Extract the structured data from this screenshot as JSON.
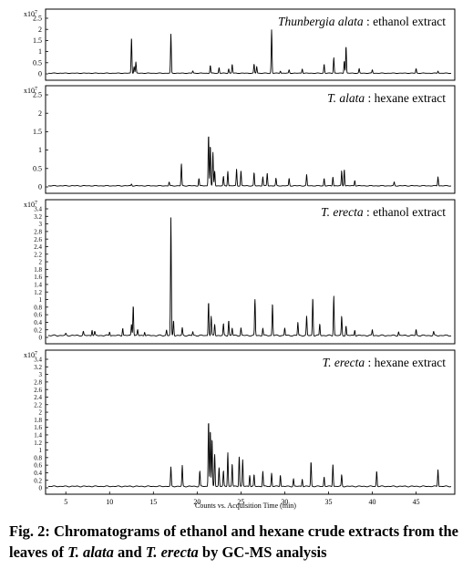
{
  "chart_data": [
    {
      "type": "line",
      "title_italic": "Thunbergia alata",
      "title_rest": " : ethanol extract",
      "scale_label": "x10",
      "scale_exp": "7",
      "ylim": [
        0,
        2.5
      ],
      "ytick_labels": [
        "0",
        "0.5",
        "1",
        "1.5",
        "2",
        "2.5"
      ],
      "baseline": 0.03,
      "peaks": [
        {
          "x": 12.5,
          "y": 1.6
        },
        {
          "x": 12.8,
          "y": 0.3
        },
        {
          "x": 13.0,
          "y": 0.5
        },
        {
          "x": 17.0,
          "y": 1.75
        },
        {
          "x": 19.5,
          "y": 0.1
        },
        {
          "x": 21.5,
          "y": 0.35
        },
        {
          "x": 22.5,
          "y": 0.25
        },
        {
          "x": 23.6,
          "y": 0.2
        },
        {
          "x": 24.0,
          "y": 0.4
        },
        {
          "x": 26.5,
          "y": 0.4
        },
        {
          "x": 26.8,
          "y": 0.3
        },
        {
          "x": 28.5,
          "y": 1.95
        },
        {
          "x": 29.5,
          "y": 0.1
        },
        {
          "x": 30.5,
          "y": 0.15
        },
        {
          "x": 32.0,
          "y": 0.2
        },
        {
          "x": 34.5,
          "y": 0.4
        },
        {
          "x": 35.6,
          "y": 0.7
        },
        {
          "x": 36.8,
          "y": 0.55
        },
        {
          "x": 37.0,
          "y": 1.2
        },
        {
          "x": 38.5,
          "y": 0.2
        },
        {
          "x": 40.0,
          "y": 0.15
        },
        {
          "x": 45.0,
          "y": 0.2
        },
        {
          "x": 47.5,
          "y": 0.1
        }
      ]
    },
    {
      "type": "line",
      "title_italic": "T. alata",
      "title_rest": " : hexane extract",
      "scale_label": "x10",
      "scale_exp": "7",
      "ylim": [
        0,
        2.5
      ],
      "ytick_labels": [
        "0",
        "0.5",
        "1",
        "1.5",
        "2",
        "2.5"
      ],
      "baseline": 0.03,
      "peaks": [
        {
          "x": 12.5,
          "y": 0.05
        },
        {
          "x": 16.8,
          "y": 0.1
        },
        {
          "x": 18.2,
          "y": 0.6
        },
        {
          "x": 20.2,
          "y": 0.2
        },
        {
          "x": 21.3,
          "y": 1.4
        },
        {
          "x": 21.5,
          "y": 1.1
        },
        {
          "x": 21.8,
          "y": 0.9
        },
        {
          "x": 22.0,
          "y": 0.4
        },
        {
          "x": 23.0,
          "y": 0.25
        },
        {
          "x": 23.5,
          "y": 0.4
        },
        {
          "x": 24.5,
          "y": 0.45
        },
        {
          "x": 25.0,
          "y": 0.4
        },
        {
          "x": 26.5,
          "y": 0.35
        },
        {
          "x": 27.5,
          "y": 0.25
        },
        {
          "x": 28.0,
          "y": 0.35
        },
        {
          "x": 29.0,
          "y": 0.2
        },
        {
          "x": 30.5,
          "y": 0.2
        },
        {
          "x": 32.5,
          "y": 0.3
        },
        {
          "x": 34.5,
          "y": 0.2
        },
        {
          "x": 35.5,
          "y": 0.25
        },
        {
          "x": 36.5,
          "y": 0.4
        },
        {
          "x": 36.8,
          "y": 0.45
        },
        {
          "x": 38.0,
          "y": 0.15
        },
        {
          "x": 42.5,
          "y": 0.1
        },
        {
          "x": 47.5,
          "y": 0.25
        }
      ]
    },
    {
      "type": "line",
      "title_italic": "T. erecta",
      "title_rest": " : ethanol extract",
      "scale_label": "x10",
      "scale_exp": "7",
      "ylim": [
        0,
        3.4
      ],
      "ytick_labels": [
        "0",
        "0.2",
        "0.4",
        "0.6",
        "0.8",
        "1",
        "1.2",
        "1.4",
        "1.6",
        "1.8",
        "2",
        "2.2",
        "2.4",
        "2.6",
        "2.8",
        "3",
        "3.2",
        "3.4"
      ],
      "baseline": 0.05,
      "peaks": [
        {
          "x": 5.0,
          "y": 0.05
        },
        {
          "x": 7.0,
          "y": 0.1
        },
        {
          "x": 8.0,
          "y": 0.15
        },
        {
          "x": 8.3,
          "y": 0.1
        },
        {
          "x": 10.0,
          "y": 0.1
        },
        {
          "x": 11.5,
          "y": 0.2
        },
        {
          "x": 12.5,
          "y": 0.3
        },
        {
          "x": 12.7,
          "y": 0.8
        },
        {
          "x": 13.2,
          "y": 0.15
        },
        {
          "x": 14.0,
          "y": 0.1
        },
        {
          "x": 16.5,
          "y": 0.15
        },
        {
          "x": 17.0,
          "y": 3.1
        },
        {
          "x": 17.3,
          "y": 0.4
        },
        {
          "x": 18.3,
          "y": 0.2
        },
        {
          "x": 19.5,
          "y": 0.1
        },
        {
          "x": 21.3,
          "y": 0.9
        },
        {
          "x": 21.6,
          "y": 0.5
        },
        {
          "x": 22.0,
          "y": 0.3
        },
        {
          "x": 23.0,
          "y": 0.3
        },
        {
          "x": 23.6,
          "y": 0.4
        },
        {
          "x": 24.0,
          "y": 0.2
        },
        {
          "x": 25.0,
          "y": 0.2
        },
        {
          "x": 26.6,
          "y": 0.95
        },
        {
          "x": 27.5,
          "y": 0.2
        },
        {
          "x": 28.6,
          "y": 0.85
        },
        {
          "x": 30.0,
          "y": 0.2
        },
        {
          "x": 31.5,
          "y": 0.35
        },
        {
          "x": 32.5,
          "y": 0.5
        },
        {
          "x": 33.2,
          "y": 1.0
        },
        {
          "x": 34.0,
          "y": 0.3
        },
        {
          "x": 35.6,
          "y": 1.05
        },
        {
          "x": 36.5,
          "y": 0.5
        },
        {
          "x": 37.0,
          "y": 0.25
        },
        {
          "x": 38.0,
          "y": 0.15
        },
        {
          "x": 40.0,
          "y": 0.15
        },
        {
          "x": 43.0,
          "y": 0.1
        },
        {
          "x": 45.0,
          "y": 0.15
        },
        {
          "x": 47.0,
          "y": 0.1
        }
      ]
    },
    {
      "type": "line",
      "title_italic": "T. erecta",
      "title_rest": " : hexane extract",
      "scale_label": "x10",
      "scale_exp": "7",
      "ylim": [
        0,
        3.4
      ],
      "ytick_labels": [
        "0",
        "0.2",
        "0.4",
        "0.6",
        "0.8",
        "1",
        "1.2",
        "1.4",
        "1.6",
        "1.8",
        "2",
        "2.2",
        "2.4",
        "2.6",
        "2.8",
        "3",
        "3.2",
        "3.4"
      ],
      "baseline": 0.04,
      "xlabel": "Counts vs. Acquisition Time (min)",
      "xlim": [
        3,
        49
      ],
      "xtick_labels": [
        "5",
        "10",
        "15",
        "20",
        "25",
        "30",
        "35",
        "40",
        "45"
      ],
      "xticks": [
        5,
        10,
        15,
        20,
        25,
        30,
        35,
        40,
        45
      ],
      "peaks": [
        {
          "x": 17.0,
          "y": 0.5
        },
        {
          "x": 18.3,
          "y": 0.55
        },
        {
          "x": 20.3,
          "y": 0.4
        },
        {
          "x": 21.3,
          "y": 1.75
        },
        {
          "x": 21.5,
          "y": 1.5
        },
        {
          "x": 21.7,
          "y": 1.25
        },
        {
          "x": 22.0,
          "y": 0.85
        },
        {
          "x": 22.5,
          "y": 0.5
        },
        {
          "x": 23.0,
          "y": 0.4
        },
        {
          "x": 23.5,
          "y": 0.9
        },
        {
          "x": 24.0,
          "y": 0.6
        },
        {
          "x": 24.8,
          "y": 0.8
        },
        {
          "x": 25.2,
          "y": 0.7
        },
        {
          "x": 26.0,
          "y": 0.3
        },
        {
          "x": 26.5,
          "y": 0.3
        },
        {
          "x": 27.5,
          "y": 0.4
        },
        {
          "x": 28.5,
          "y": 0.35
        },
        {
          "x": 29.5,
          "y": 0.3
        },
        {
          "x": 31.0,
          "y": 0.2
        },
        {
          "x": 32.0,
          "y": 0.2
        },
        {
          "x": 33.0,
          "y": 0.65
        },
        {
          "x": 34.5,
          "y": 0.25
        },
        {
          "x": 35.5,
          "y": 0.6
        },
        {
          "x": 36.5,
          "y": 0.3
        },
        {
          "x": 40.5,
          "y": 0.4
        },
        {
          "x": 47.5,
          "y": 0.45
        }
      ]
    }
  ],
  "caption": {
    "p1": "Fig. 2: Chromatograms of ethanol and hexane crude extracts from the leaves of ",
    "i1": "T. alata",
    "p2": " and ",
    "i2": "T. erecta",
    "p3": " by GC-MS analysis"
  }
}
